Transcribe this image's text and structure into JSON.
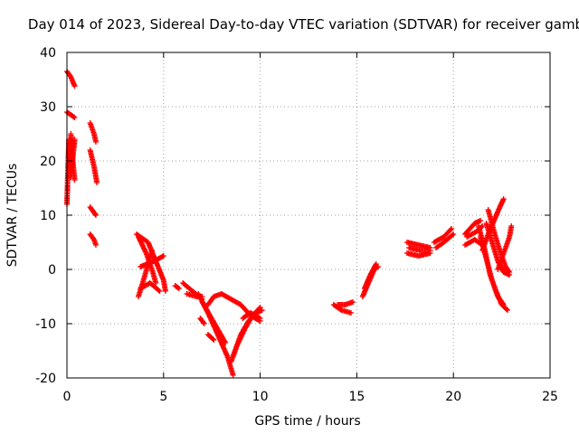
{
  "chart_data": {
    "type": "scatter",
    "title": "Day 014 of 2023, Sidereal Day-to-day VTEC variation (SDTVAR) for receiver gamb",
    "xlabel": "GPS time / hours",
    "ylabel": "SDTVAR / TECUs",
    "xlim": [
      0,
      25
    ],
    "ylim": [
      -20,
      40
    ],
    "xticks": [
      "0",
      "5",
      "10",
      "15",
      "20",
      "25"
    ],
    "yticks": [
      "-20",
      "-10",
      "0",
      "10",
      "20",
      "30",
      "40"
    ],
    "grid": true,
    "marker": "+",
    "color": "#ff0000",
    "tracks": [
      [
        [
          0.0,
          36.5
        ],
        [
          0.2,
          35.5
        ],
        [
          0.4,
          33.8
        ]
      ],
      [
        [
          0.0,
          29.0
        ],
        [
          0.2,
          28.5
        ],
        [
          0.4,
          28.0
        ]
      ],
      [
        [
          0.0,
          12.0
        ],
        [
          0.05,
          18.0
        ],
        [
          0.1,
          24.0
        ]
      ],
      [
        [
          0.1,
          22.0
        ],
        [
          0.2,
          17.0
        ],
        [
          0.4,
          24.0
        ]
      ],
      [
        [
          0.2,
          25.0
        ],
        [
          0.3,
          20.0
        ],
        [
          0.4,
          16.5
        ]
      ],
      [
        [
          1.2,
          27.0
        ],
        [
          1.4,
          25.0
        ],
        [
          1.5,
          23.5
        ]
      ],
      [
        [
          1.2,
          22.0
        ],
        [
          1.4,
          19.0
        ],
        [
          1.55,
          16.0
        ]
      ],
      [
        [
          1.2,
          11.5
        ],
        [
          1.4,
          10.5
        ],
        [
          1.5,
          10.0
        ]
      ],
      [
        [
          1.2,
          6.5
        ],
        [
          1.4,
          5.5
        ],
        [
          1.5,
          4.5
        ]
      ],
      [
        [
          3.6,
          6.5
        ],
        [
          4.2,
          5.0
        ],
        [
          4.6,
          1.5
        ],
        [
          5.0,
          -2.0
        ],
        [
          5.1,
          -4.0
        ]
      ],
      [
        [
          3.7,
          6.0
        ],
        [
          4.1,
          3.0
        ],
        [
          4.4,
          0.0
        ],
        [
          4.6,
          -2.5
        ]
      ],
      [
        [
          3.7,
          -5.0
        ],
        [
          4.0,
          -1.5
        ],
        [
          4.2,
          1.0
        ],
        [
          4.4,
          3.5
        ]
      ],
      [
        [
          3.8,
          0.5
        ],
        [
          4.5,
          1.5
        ],
        [
          5.0,
          2.5
        ]
      ],
      [
        [
          3.8,
          -3.5
        ],
        [
          4.3,
          -2.5
        ],
        [
          4.8,
          -4.0
        ]
      ],
      [
        [
          5.6,
          -3.0
        ],
        [
          5.8,
          -3.5
        ]
      ],
      [
        [
          6.0,
          -2.5
        ],
        [
          6.5,
          -4.0
        ],
        [
          7.0,
          -5.5
        ]
      ],
      [
        [
          6.2,
          -4.5
        ],
        [
          6.7,
          -5.0
        ],
        [
          7.0,
          -5.0
        ]
      ],
      [
        [
          6.8,
          -4.5
        ],
        [
          7.3,
          -8.0
        ],
        [
          7.8,
          -12.0
        ],
        [
          8.3,
          -16.0
        ],
        [
          8.6,
          -19.5
        ]
      ],
      [
        [
          7.0,
          -6.0
        ],
        [
          7.4,
          -8.5
        ],
        [
          7.8,
          -11.0
        ],
        [
          8.2,
          -13.5
        ]
      ],
      [
        [
          6.9,
          -9.0
        ],
        [
          7.1,
          -10.0
        ]
      ],
      [
        [
          7.3,
          -12.0
        ],
        [
          7.6,
          -13.0
        ]
      ],
      [
        [
          7.3,
          -6.5
        ],
        [
          7.6,
          -5.0
        ],
        [
          8.0,
          -4.5
        ],
        [
          8.5,
          -5.5
        ],
        [
          9.0,
          -6.5
        ],
        [
          9.5,
          -8.5
        ],
        [
          10.0,
          -9.5
        ]
      ],
      [
        [
          8.5,
          -17.0
        ],
        [
          8.8,
          -14.0
        ],
        [
          9.2,
          -11.0
        ],
        [
          9.6,
          -8.5
        ],
        [
          10.0,
          -7.0
        ]
      ],
      [
        [
          8.6,
          -16.0
        ],
        [
          9.0,
          -12.0
        ],
        [
          9.4,
          -9.5
        ],
        [
          9.8,
          -8.0
        ],
        [
          10.1,
          -7.5
        ]
      ],
      [
        [
          9.1,
          -9.0
        ],
        [
          9.5,
          -8.0
        ],
        [
          10.0,
          -9.0
        ]
      ],
      [
        [
          13.8,
          -6.5
        ],
        [
          14.2,
          -7.5
        ],
        [
          14.7,
          -8.0
        ]
      ],
      [
        [
          14.0,
          -6.5
        ],
        [
          14.4,
          -6.5
        ],
        [
          14.8,
          -6.0
        ]
      ],
      [
        [
          15.3,
          -5.0
        ],
        [
          15.6,
          -2.5
        ],
        [
          15.9,
          0.0
        ],
        [
          16.1,
          0.5
        ]
      ],
      [
        [
          15.4,
          -3.5
        ],
        [
          15.7,
          -1.0
        ],
        [
          16.0,
          1.0
        ]
      ],
      [
        [
          17.6,
          5.0
        ],
        [
          18.2,
          4.5
        ],
        [
          18.8,
          4.0
        ]
      ],
      [
        [
          17.6,
          3.0
        ],
        [
          18.2,
          2.5
        ],
        [
          18.8,
          3.0
        ]
      ],
      [
        [
          17.7,
          4.0
        ],
        [
          18.3,
          3.5
        ],
        [
          18.8,
          3.5
        ]
      ],
      [
        [
          19.0,
          5.0
        ],
        [
          19.5,
          6.0
        ],
        [
          19.9,
          7.5
        ]
      ],
      [
        [
          19.1,
          4.0
        ],
        [
          19.5,
          5.0
        ],
        [
          20.0,
          6.5
        ]
      ],
      [
        [
          20.6,
          6.5
        ],
        [
          21.1,
          8.5
        ],
        [
          21.4,
          9.0
        ]
      ],
      [
        [
          20.6,
          4.5
        ],
        [
          21.1,
          5.5
        ],
        [
          21.5,
          4.5
        ]
      ],
      [
        [
          20.7,
          6.0
        ],
        [
          21.2,
          7.0
        ],
        [
          21.5,
          8.0
        ]
      ],
      [
        [
          21.3,
          8.0
        ],
        [
          21.6,
          4.0
        ],
        [
          21.9,
          -1.0
        ],
        [
          22.2,
          -4.0
        ],
        [
          22.5,
          -6.5
        ],
        [
          22.8,
          -7.5
        ]
      ],
      [
        [
          21.4,
          6.0
        ],
        [
          21.7,
          2.0
        ],
        [
          22.0,
          -2.0
        ],
        [
          22.3,
          -5.0
        ],
        [
          22.6,
          -6.5
        ]
      ],
      [
        [
          21.7,
          8.5
        ],
        [
          22.0,
          5.0
        ],
        [
          22.3,
          1.5
        ],
        [
          22.6,
          -0.5
        ],
        [
          22.9,
          -1.0
        ]
      ],
      [
        [
          21.8,
          11.0
        ],
        [
          22.1,
          7.0
        ],
        [
          22.4,
          3.5
        ],
        [
          22.7,
          0.5
        ],
        [
          22.9,
          -0.5
        ]
      ],
      [
        [
          21.5,
          3.5
        ],
        [
          21.8,
          6.5
        ],
        [
          22.1,
          9.0
        ],
        [
          22.4,
          11.5
        ],
        [
          22.6,
          13.0
        ]
      ],
      [
        [
          22.3,
          0.0
        ],
        [
          22.6,
          3.0
        ],
        [
          22.9,
          6.0
        ],
        [
          23.0,
          8.0
        ]
      ]
    ]
  }
}
